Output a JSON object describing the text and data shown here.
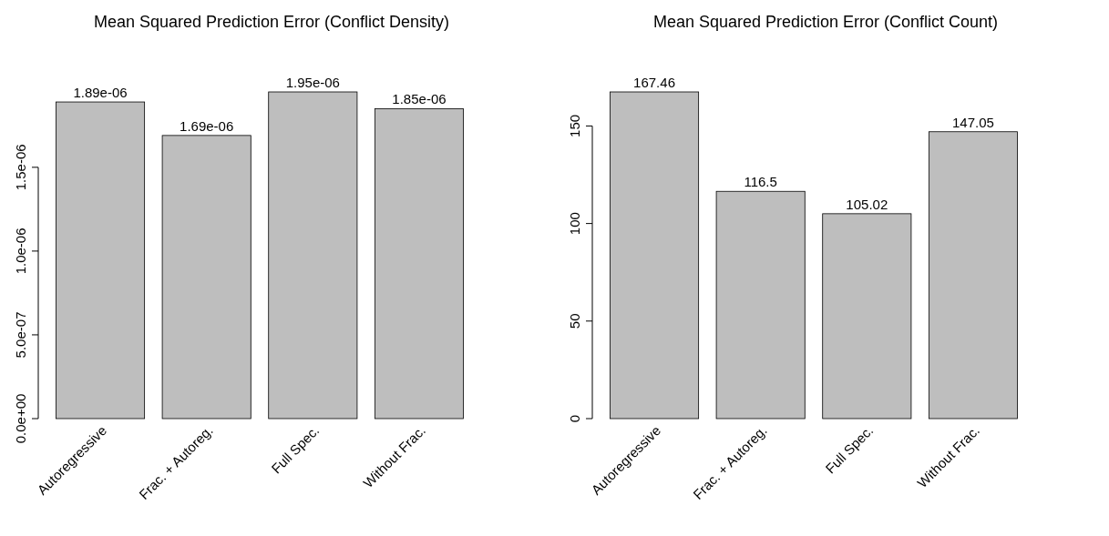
{
  "chart_data": [
    {
      "type": "bar",
      "title": "Mean Squared Prediction Error (Conflict Density)",
      "categories": [
        "Autoregressive",
        "Frac. + Autoreg.",
        "Full Spec.",
        "Without Frac."
      ],
      "values": [
        1.89e-06,
        1.69e-06,
        1.95e-06,
        1.85e-06
      ],
      "value_labels": [
        "1.89e-06",
        "1.69e-06",
        "1.95e-06",
        "1.85e-06"
      ],
      "color": "#bebebe",
      "ylim": [
        0,
        1.95e-06
      ],
      "yticks": [
        {
          "value": 0,
          "label": "0.0e+00"
        },
        {
          "value": 5e-07,
          "label": "5.0e-07"
        },
        {
          "value": 1e-06,
          "label": "1.0e-06"
        },
        {
          "value": 1.5e-06,
          "label": "1.5e-06"
        }
      ],
      "grid": false
    },
    {
      "type": "bar",
      "title": "Mean Squared Prediction Error (Conflict Count)",
      "categories": [
        "Autoregressive",
        "Frac. + Autoreg.",
        "Full Spec.",
        "Without Frac."
      ],
      "values": [
        167.46,
        116.5,
        105.02,
        147.05
      ],
      "data_labels": true,
      "color": "#bebebe",
      "ylim": [
        0,
        167.46
      ],
      "yticks": [
        0,
        50,
        100,
        150
      ],
      "grid": false
    }
  ]
}
